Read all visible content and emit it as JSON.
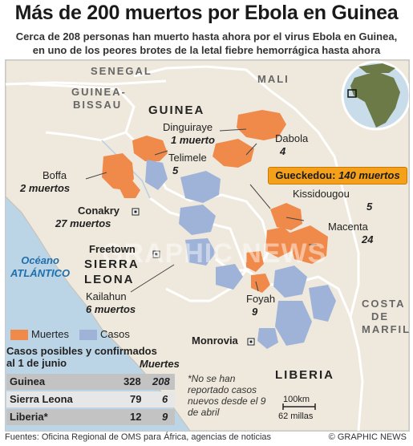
{
  "title": "Más de 200 muertos por Ebola en Guinea",
  "subtitle_line1": "Cerca de 208 personas han muerto hasta ahora por el virus Ebola en Guinea,",
  "subtitle_line2": "en uno de los peores brotes de la letal fiebre hemorrágica hasta ahora",
  "countries": {
    "senegal": "SENEGAL",
    "mali": "MALI",
    "guinea_bissau_1": "GUINEA-",
    "guinea_bissau_2": "BISSAU",
    "guinea": "GUINEA",
    "sierra_leone_1": "SIERRA",
    "sierra_leone_2": "LEONA",
    "liberia": "LIBERIA",
    "costa_1": "COSTA",
    "costa_2": "DE",
    "costa_3": "MARFIL"
  },
  "ocean_1": "Océano",
  "ocean_2": "ATLÁNTICO",
  "places": {
    "dinguiraye": {
      "name": "Dinguiraye",
      "count": "1 muerto"
    },
    "dabola": {
      "name": "Dabola",
      "count": "4"
    },
    "telimele": {
      "name": "Telimele",
      "count": "5"
    },
    "boffa": {
      "name": "Boffa",
      "count": "2 muertos"
    },
    "conakry": {
      "name": "Conakry",
      "count": "27 muertos"
    },
    "kissidougou": {
      "name": "Kissidougou",
      "count": "5"
    },
    "macenta": {
      "name": "Macenta",
      "count": "24"
    },
    "freetown": {
      "name": "Freetown"
    },
    "kailahun": {
      "name": "Kailahun",
      "count": "6 muertos"
    },
    "foyah": {
      "name": "Foyah",
      "count": "9"
    },
    "monrovia": {
      "name": "Monrovia"
    }
  },
  "callout": {
    "name": "Gueckedou:",
    "count": "140 muertos"
  },
  "legend": {
    "deaths_label": "Muertes",
    "cases_label": "Casos"
  },
  "colors": {
    "deaths": "#f08a4b",
    "cases": "#9fb3d9",
    "land": "#efe8dc",
    "sea": "#bcd5e6",
    "highlight": "#f5a01a"
  },
  "table": {
    "title_line1": "Casos posibles y confirmados",
    "title_line2": "al 1 de junio",
    "deaths_header": "Muertes",
    "rows": [
      {
        "country": "Guinea",
        "cases": "328",
        "deaths": "208"
      },
      {
        "country": "Sierra Leona",
        "cases": "79",
        "deaths": "6"
      },
      {
        "country": "Liberia*",
        "cases": "12",
        "deaths": "9"
      }
    ]
  },
  "note": "*No se han reportado casos nuevos desde el 9 de abril",
  "scale": {
    "km": "100km",
    "miles": "62 millas"
  },
  "footer": "Fuentes: Oficina Regional de OMS para África, agencias de noticias",
  "credit": "© GRAPHIC NEWS",
  "watermark": "GRAPHIC NEWS"
}
